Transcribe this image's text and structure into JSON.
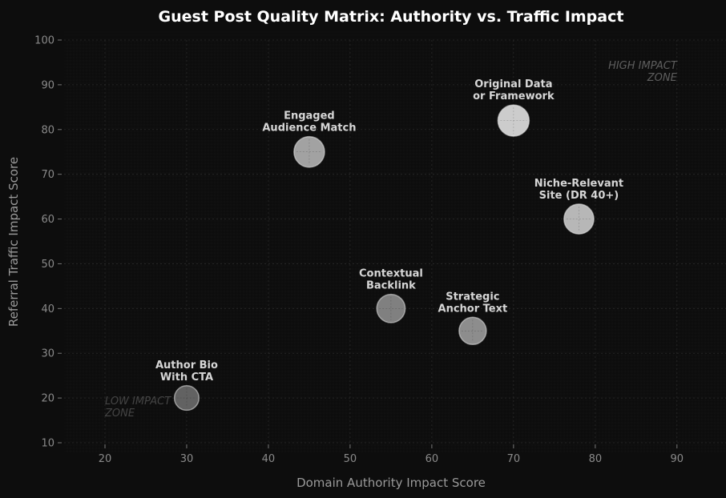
{
  "chart_data": {
    "type": "scatter",
    "title": "Guest Post Quality Matrix: Authority vs. Traffic Impact",
    "xlabel": "Domain Authority Impact Score",
    "ylabel": "Referral Traffic Impact Score",
    "xlim": [
      15,
      96
    ],
    "ylim": [
      10,
      100
    ],
    "xticks": [
      20,
      30,
      40,
      50,
      60,
      70,
      80,
      90
    ],
    "yticks": [
      10,
      20,
      30,
      40,
      50,
      60,
      70,
      80,
      90,
      100
    ],
    "grid": true,
    "points": [
      {
        "label_lines": [
          "Author Bio",
          "With CTA"
        ],
        "x": 30,
        "y": 20,
        "size": 0.38,
        "shade": 0.3
      },
      {
        "label_lines": [
          "Engaged",
          "Audience Match"
        ],
        "x": 45,
        "y": 75,
        "size": 0.65,
        "shade": 0.68
      },
      {
        "label_lines": [
          "Contextual",
          "Backlink"
        ],
        "x": 55,
        "y": 40,
        "size": 0.55,
        "shade": 0.48
      },
      {
        "label_lines": [
          "Strategic",
          "Anchor Text"
        ],
        "x": 65,
        "y": 35,
        "size": 0.5,
        "shade": 0.55
      },
      {
        "label_lines": [
          "Original Data",
          "or Framework"
        ],
        "x": 70,
        "y": 82,
        "size": 0.68,
        "shade": 0.92
      },
      {
        "label_lines": [
          "Niche-Relevant",
          "Site (DR 40+)"
        ],
        "x": 78,
        "y": 60,
        "size": 0.62,
        "shade": 0.8
      }
    ],
    "annotations": [
      {
        "lines": [
          "HIGH IMPACT",
          "ZONE"
        ],
        "x": 90,
        "y": 92.5,
        "style": "high"
      },
      {
        "lines": [
          "LOW IMPACT",
          "ZONE"
        ],
        "x": 20,
        "y": 17.5,
        "style": "low"
      }
    ]
  }
}
